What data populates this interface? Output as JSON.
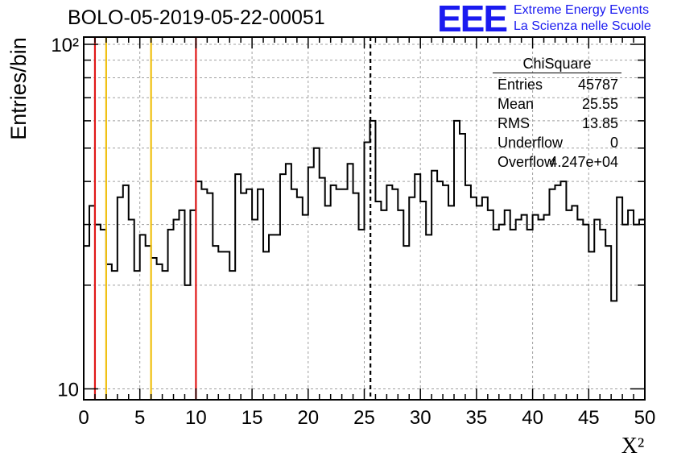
{
  "header": {
    "run_title": "BOLO-05-2019-05-22-00051",
    "logo_mark": "EEE",
    "logo_line1": "Extreme Energy Events",
    "logo_line2": "La Scienza nelle Scuole",
    "logo_color": "#1a1af0"
  },
  "stats": {
    "title": "ChiSquare",
    "rows": [
      {
        "label": "Entries",
        "value": "45787"
      },
      {
        "label": "Mean",
        "value": "25.55"
      },
      {
        "label": "RMS",
        "value": "13.85"
      },
      {
        "label": "Underflow",
        "value": "0"
      },
      {
        "label": "Overflow",
        "value": "4.247e+04"
      }
    ]
  },
  "chart_data": {
    "type": "histogram",
    "title": "BOLO-05-2019-05-22-00051",
    "xlabel": "X²",
    "ylabel": "Entries/bin",
    "xlim": [
      0,
      50
    ],
    "ylim": [
      9.3,
      105
    ],
    "yscale": "log",
    "bin_width": 0.5,
    "grid": true,
    "x_ticks": [
      0,
      5,
      10,
      15,
      20,
      25,
      30,
      35,
      40,
      45,
      50
    ],
    "x_tick_labels": [
      "0",
      "5",
      "10",
      "15",
      "20",
      "25",
      "30",
      "35",
      "40",
      "45",
      "50"
    ],
    "y_ticks": [
      10,
      100
    ],
    "y_tick_labels": [
      "10",
      "10²"
    ],
    "values": [
      26,
      34,
      30,
      29,
      23,
      22,
      36,
      39,
      31,
      22,
      28,
      26,
      24,
      23,
      22,
      29,
      31,
      33,
      20,
      33,
      40,
      38,
      37,
      26,
      25,
      25,
      22,
      42,
      37,
      38,
      31,
      38,
      25,
      28,
      28,
      42,
      45,
      38,
      36,
      32,
      44,
      50,
      41,
      34,
      39,
      38,
      38,
      45,
      37,
      29,
      52,
      60,
      35,
      33,
      39,
      38,
      33,
      26,
      36,
      42,
      35,
      28,
      43,
      40,
      39,
      34,
      60,
      55,
      39,
      36,
      34,
      36,
      33,
      29,
      30,
      33,
      29,
      31,
      32,
      29,
      32,
      31,
      32,
      38,
      39,
      40,
      33,
      34,
      31,
      30,
      25,
      31,
      29,
      26,
      18,
      36,
      30,
      33,
      30,
      31
    ],
    "vertical_lines": [
      {
        "x": 1,
        "color": "#e01818",
        "style": "solid"
      },
      {
        "x": 2,
        "color": "#f0c010",
        "style": "solid"
      },
      {
        "x": 6,
        "color": "#f0c010",
        "style": "solid"
      },
      {
        "x": 10,
        "color": "#e01818",
        "style": "solid"
      },
      {
        "x": 25.55,
        "color": "#000000",
        "style": "dashed"
      }
    ]
  }
}
